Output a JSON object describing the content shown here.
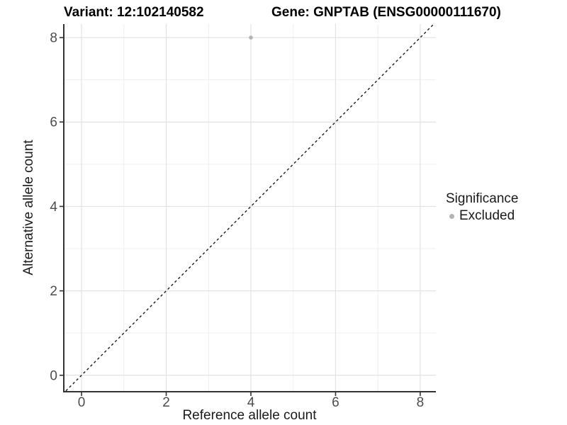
{
  "figure": {
    "title_left": "Variant: 12:102140582",
    "title_right": "Gene: GNPTAB (ENSG00000111670)"
  },
  "chart_data": {
    "type": "scatter",
    "title": "Variant: 12:102140582   Gene: GNPTAB (ENSG00000111670)",
    "xlabel": "Reference allele count",
    "ylabel": "Alternative allele count",
    "xlim": [
      -0.42,
      8.37
    ],
    "ylim": [
      -0.39,
      8.32
    ],
    "x_ticks": [
      0,
      2,
      4,
      6,
      8
    ],
    "y_ticks": [
      0,
      2,
      4,
      6,
      8
    ],
    "x_minor_breaks": [
      1,
      3,
      5,
      7
    ],
    "y_minor_breaks": [
      1,
      3,
      5,
      7
    ],
    "grid": "major+minor",
    "series": [
      {
        "name": "Excluded",
        "color": "#b3b3b3",
        "points": [
          {
            "x": 4,
            "y": 8
          }
        ]
      }
    ],
    "reference_line": {
      "type": "identity",
      "equation": "y = x",
      "style": "dashed",
      "color": "#1a1a1a"
    },
    "legend": {
      "title": "Significance",
      "position": "right",
      "items": [
        {
          "label": "Excluded",
          "color": "#b3b3b3",
          "marker": "circle"
        }
      ]
    }
  },
  "colors": {
    "background": "#ffffff",
    "grid_major": "#e2e2e2",
    "grid_minor": "#efefef",
    "axis_line": "#333333",
    "tick_label": "#4d4d4d",
    "point_gray": "#b3b3b3"
  }
}
